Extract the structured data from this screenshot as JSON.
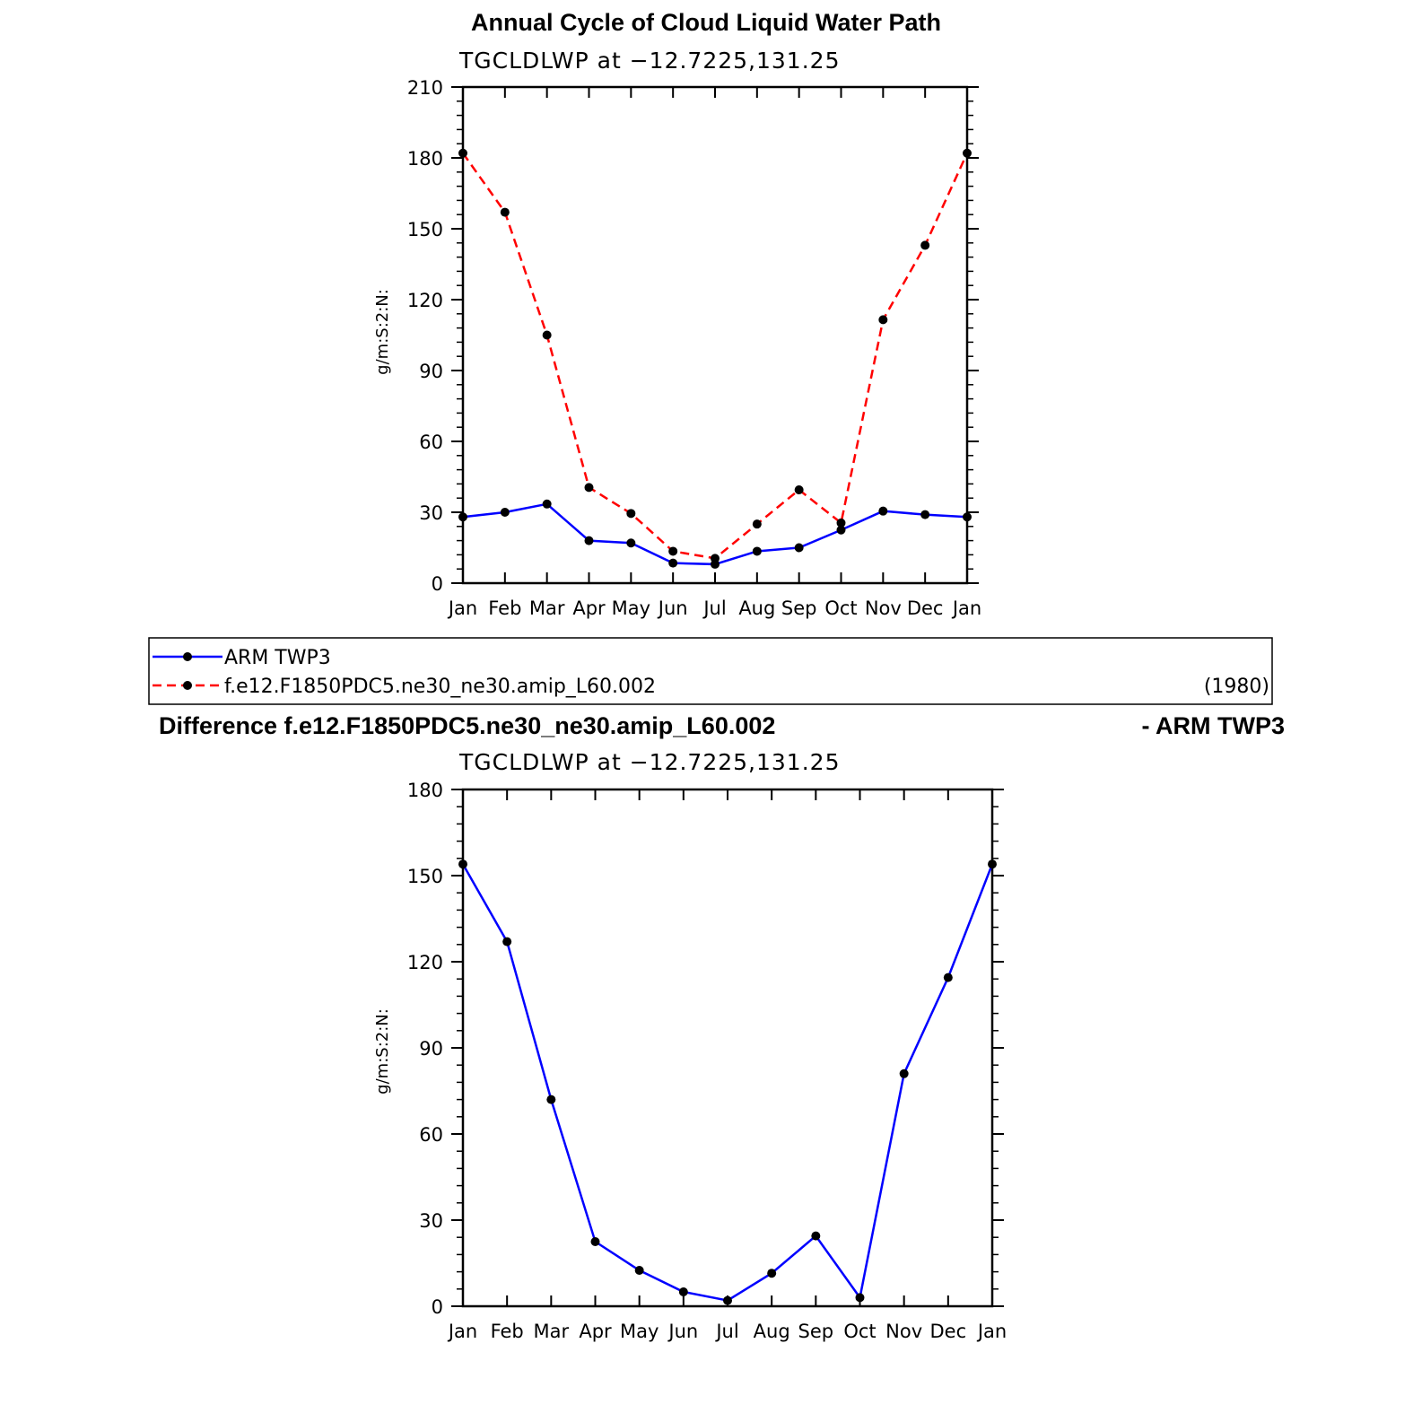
{
  "chart_data": [
    {
      "type": "line",
      "title": "Annual Cycle of Cloud Liquid Water Path",
      "subtitle": "TGCLDLWP at −12.7225,131.25",
      "ylabel": "g/m:S:2:N:",
      "xlabel": "",
      "categories": [
        "Jan",
        "Feb",
        "Mar",
        "Apr",
        "May",
        "Jun",
        "Jul",
        "Aug",
        "Sep",
        "Oct",
        "Nov",
        "Dec",
        "Jan"
      ],
      "ylim": [
        0,
        210
      ],
      "yticks": [
        0,
        30,
        60,
        90,
        120,
        150,
        180,
        210
      ],
      "grid": false,
      "series": [
        {
          "name": "ARM TWP3",
          "color": "#0000ff",
          "dash": "solid",
          "values": [
            28,
            30,
            33.5,
            18,
            17,
            8.5,
            8,
            13.5,
            15,
            22.5,
            30.5,
            29,
            28
          ]
        },
        {
          "name": "f.e12.F1850PDC5.ne30_ne30.amip_L60.002",
          "color": "#ff0000",
          "dash": "dashed",
          "values": [
            182,
            157,
            105,
            40.5,
            29.5,
            13.5,
            10.5,
            25,
            39.5,
            25.5,
            111.5,
            143,
            182
          ]
        }
      ]
    },
    {
      "type": "line",
      "title": "Difference f.e12.F1850PDC5.ne30_ne30.amip_L60.002",
      "title_right": "- ARM TWP3",
      "subtitle": "TGCLDLWP at −12.7225,131.25",
      "ylabel": "g/m:S:2:N:",
      "xlabel": "",
      "categories": [
        "Jan",
        "Feb",
        "Mar",
        "Apr",
        "May",
        "Jun",
        "Jul",
        "Aug",
        "Sep",
        "Oct",
        "Nov",
        "Dec",
        "Jan"
      ],
      "ylim": [
        0,
        180
      ],
      "yticks": [
        0,
        30,
        60,
        90,
        120,
        150,
        180
      ],
      "grid": false,
      "series": [
        {
          "color": "#0000ff",
          "dash": "solid",
          "values": [
            154,
            127,
            72,
            22.5,
            12.5,
            5,
            2,
            11.5,
            24.5,
            3,
            81,
            114.5,
            154
          ]
        }
      ]
    }
  ],
  "legend": {
    "entries": [
      {
        "label": "ARM TWP3",
        "color": "#0000ff",
        "dash": "solid"
      },
      {
        "label": "f.e12.F1850PDC5.ne30_ne30.amip_L60.002",
        "color": "#ff0000",
        "dash": "dashed"
      }
    ],
    "note": "(1980)"
  }
}
